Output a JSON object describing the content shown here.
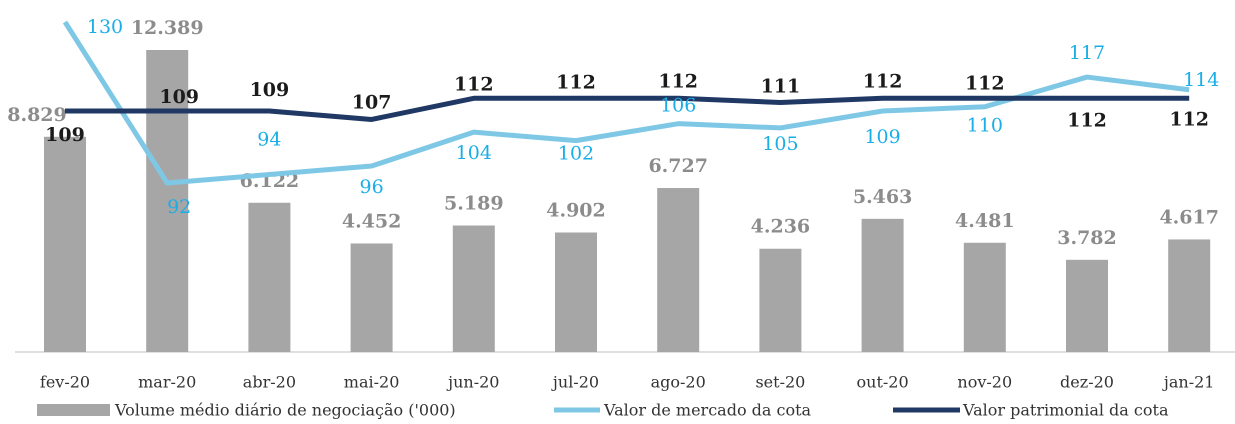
{
  "chart_data": {
    "type": "bar-line",
    "categories": [
      "fev-20",
      "mar-20",
      "abr-20",
      "mai-20",
      "jun-20",
      "jul-20",
      "ago-20",
      "set-20",
      "out-20",
      "nov-20",
      "dez-20",
      "jan-21"
    ],
    "series": [
      {
        "name": "Volume médio diário de negociação ('000)",
        "type": "bar",
        "color": "#a6a6a6",
        "values": [
          8.829,
          12.389,
          6.122,
          4.452,
          5.189,
          4.902,
          6.727,
          4.236,
          5.463,
          4.481,
          3.782,
          4.617
        ]
      },
      {
        "name": "Valor de mercado da cota",
        "type": "line",
        "color": "#7ec8e6",
        "values": [
          130,
          92,
          94,
          96,
          104,
          102,
          106,
          105,
          109,
          110,
          117,
          114
        ]
      },
      {
        "name": "Valor patrimonial da cota",
        "type": "line",
        "color": "#1f3864",
        "values": [
          109,
          109,
          109,
          107,
          112,
          112,
          112,
          111,
          112,
          112,
          112,
          112
        ]
      }
    ]
  }
}
